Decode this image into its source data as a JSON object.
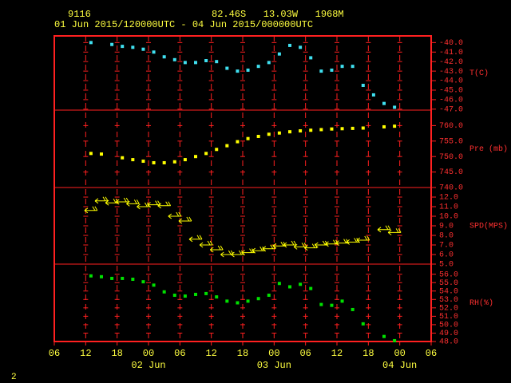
{
  "chart_data": {
    "type": "scatter",
    "station": "9116",
    "location": "82.46S   13.03W   1968M",
    "period": "01 Jun 2015/120000UTC - 04 Jun 2015/000000UTC",
    "page_number": "2",
    "xlim": [
      "2015-06-01T06:00",
      "2015-06-04T06:00"
    ],
    "xticks": [
      {
        "value": "2015-06-01T06:00",
        "label": "06"
      },
      {
        "value": "2015-06-01T12:00",
        "label": "12"
      },
      {
        "value": "2015-06-01T18:00",
        "label": "18"
      },
      {
        "value": "2015-06-02T00:00",
        "label": "00"
      },
      {
        "value": "2015-06-02T06:00",
        "label": "06"
      },
      {
        "value": "2015-06-02T12:00",
        "label": "12"
      },
      {
        "value": "2015-06-02T18:00",
        "label": "18"
      },
      {
        "value": "2015-06-03T00:00",
        "label": "00"
      },
      {
        "value": "2015-06-03T06:00",
        "label": "06"
      },
      {
        "value": "2015-06-03T12:00",
        "label": "12"
      },
      {
        "value": "2015-06-03T18:00",
        "label": "18"
      },
      {
        "value": "2015-06-04T00:00",
        "label": "00"
      },
      {
        "value": "2015-06-04T06:00",
        "label": "06"
      }
    ],
    "date_labels": [
      {
        "value": "2015-06-02T00:00",
        "label": "02 Jun"
      },
      {
        "value": "2015-06-03T00:00",
        "label": "03 Jun"
      },
      {
        "value": "2015-06-04T00:00",
        "label": "04 Jun"
      }
    ],
    "x": [
      "2015-06-01T13:00",
      "2015-06-01T15:00",
      "2015-06-01T17:00",
      "2015-06-01T19:00",
      "2015-06-01T21:00",
      "2015-06-01T23:00",
      "2015-06-02T01:00",
      "2015-06-02T03:00",
      "2015-06-02T05:00",
      "2015-06-02T07:00",
      "2015-06-02T09:00",
      "2015-06-02T11:00",
      "2015-06-02T13:00",
      "2015-06-02T15:00",
      "2015-06-02T17:00",
      "2015-06-02T19:00",
      "2015-06-02T21:00",
      "2015-06-02T23:00",
      "2015-06-03T01:00",
      "2015-06-03T03:00",
      "2015-06-03T05:00",
      "2015-06-03T07:00",
      "2015-06-03T09:00",
      "2015-06-03T11:00",
      "2015-06-03T13:00",
      "2015-06-03T15:00",
      "2015-06-03T17:00",
      "2015-06-03T19:00",
      "2015-06-03T21:00",
      "2015-06-03T23:00"
    ],
    "panels": [
      {
        "ylabel": "T(C)",
        "marker": "square",
        "color": "#40e0f0",
        "ylim": [
          -47.1,
          -39.3
        ],
        "yticks": [
          {
            "value": -40,
            "label": "-40.0"
          },
          {
            "value": -41,
            "label": "-41.0"
          },
          {
            "value": -42,
            "label": "-42.0"
          },
          {
            "value": -43,
            "label": "-43.0"
          },
          {
            "value": -44,
            "label": "-44.0"
          },
          {
            "value": -45,
            "label": "-45.0"
          },
          {
            "value": -46,
            "label": "-46.0"
          },
          {
            "value": -47,
            "label": "-47.0"
          }
        ],
        "values": [
          -40.0,
          null,
          -40.2,
          -40.4,
          -40.5,
          -40.7,
          -41.0,
          -41.5,
          -41.8,
          -42.1,
          -42.1,
          -41.9,
          -42.0,
          -42.7,
          -43.0,
          -42.9,
          -42.5,
          -42.1,
          -41.2,
          -40.3,
          -40.5,
          -41.6,
          -43.0,
          -42.9,
          -42.5,
          -42.5,
          -44.5,
          -45.5,
          -46.4,
          -46.8
        ]
      },
      {
        "ylabel": "Pre (mb)",
        "marker": "square",
        "color": "#ffff00",
        "ylim": [
          740,
          765
        ],
        "yticks": [
          {
            "value": 760,
            "label": "760.0"
          },
          {
            "value": 755,
            "label": "755.0"
          },
          {
            "value": 750,
            "label": "750.0"
          },
          {
            "value": 745,
            "label": "745.0"
          },
          {
            "value": 740,
            "label": "740.0"
          }
        ],
        "values": [
          751.0,
          750.8,
          null,
          749.6,
          749.0,
          748.5,
          748.0,
          748.0,
          748.3,
          749.0,
          750.0,
          751.0,
          752.3,
          753.5,
          754.8,
          755.8,
          756.5,
          757.2,
          757.6,
          758.0,
          758.3,
          758.5,
          758.7,
          758.9,
          759.0,
          759.1,
          759.2,
          null,
          759.6,
          759.8
        ]
      },
      {
        "ylabel": "SPD(MPS)",
        "marker": "barb",
        "color": "#ffff00",
        "ylim": [
          5,
          13
        ],
        "yticks": [
          {
            "value": 12,
            "label": "12.0"
          },
          {
            "value": 11,
            "label": "11.0"
          },
          {
            "value": 10,
            "label": "10.0"
          },
          {
            "value": 9,
            "label": "9.0"
          },
          {
            "value": 8,
            "label": "8.0"
          },
          {
            "value": 7,
            "label": "7.0"
          },
          {
            "value": 6,
            "label": "6.0"
          },
          {
            "value": 5,
            "label": "5.0"
          }
        ],
        "values": [
          10.6,
          11.6,
          11.4,
          11.5,
          11.3,
          11.0,
          11.2,
          11.1,
          10.0,
          9.5,
          7.6,
          7.0,
          6.5,
          6.0,
          6.0,
          6.2,
          6.4,
          6.6,
          6.9,
          7.0,
          6.8,
          6.7,
          7.0,
          7.1,
          7.2,
          7.3,
          7.5,
          null,
          8.6,
          8.3
        ]
      },
      {
        "ylabel": "RH(%)",
        "marker": "square",
        "color": "#00e000",
        "ylim": [
          48,
          57.2
        ],
        "yticks": [
          {
            "value": 56,
            "label": "56.0"
          },
          {
            "value": 55,
            "label": "55.0"
          },
          {
            "value": 54,
            "label": "54.0"
          },
          {
            "value": 53,
            "label": "53.0"
          },
          {
            "value": 52,
            "label": "52.0"
          },
          {
            "value": 51,
            "label": "51.0"
          },
          {
            "value": 50,
            "label": "50.0"
          },
          {
            "value": 49,
            "label": "49.0"
          },
          {
            "value": 48,
            "label": "48.0"
          }
        ],
        "values": [
          55.8,
          55.7,
          55.5,
          55.5,
          55.4,
          55.1,
          54.7,
          53.9,
          53.5,
          53.4,
          53.6,
          53.7,
          53.3,
          52.8,
          52.6,
          52.8,
          53.1,
          53.5,
          54.9,
          54.5,
          54.8,
          54.3,
          52.4,
          52.3,
          52.8,
          51.8,
          50.1,
          null,
          48.6,
          48.1
        ]
      }
    ]
  }
}
